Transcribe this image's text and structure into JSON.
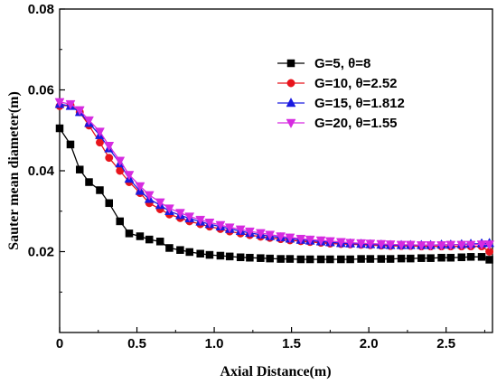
{
  "chart_data": {
    "type": "line",
    "xlabel": "Axial Distance(m)",
    "ylabel": "Sauter mean diameter(m)",
    "xlim": [
      0,
      2.8
    ],
    "ylim": [
      0,
      0.08
    ],
    "x_ticks": [
      0,
      0.5,
      1.0,
      1.5,
      2.0,
      2.5
    ],
    "x_tick_labels": [
      "0",
      "0.5",
      "1.0",
      "1.5",
      "2.0",
      "2.5"
    ],
    "y_ticks": [
      0.02,
      0.04,
      0.06,
      0.08
    ],
    "y_tick_labels": [
      "0.02",
      "0.04",
      "0.06",
      "0.08"
    ],
    "grid": false,
    "legend_position": "top-right",
    "series": [
      {
        "name": "G=5,   θ=8",
        "color": "#000000",
        "marker": "square",
        "x": [
          0.0,
          0.07,
          0.13,
          0.19,
          0.26,
          0.32,
          0.39,
          0.45,
          0.52,
          0.58,
          0.65,
          0.71,
          0.78,
          0.84,
          0.91,
          0.97,
          1.04,
          1.1,
          1.17,
          1.23,
          1.3,
          1.36,
          1.43,
          1.49,
          1.56,
          1.62,
          1.69,
          1.75,
          1.82,
          1.88,
          1.95,
          2.01,
          2.08,
          2.14,
          2.21,
          2.27,
          2.34,
          2.4,
          2.47,
          2.53,
          2.6,
          2.66,
          2.73,
          2.78
        ],
        "y": [
          0.0505,
          0.0465,
          0.0403,
          0.0372,
          0.0352,
          0.032,
          0.0275,
          0.0245,
          0.0238,
          0.023,
          0.0225,
          0.0209,
          0.0204,
          0.0199,
          0.0195,
          0.0192,
          0.019,
          0.0188,
          0.0186,
          0.0185,
          0.0184,
          0.0183,
          0.0182,
          0.0182,
          0.0181,
          0.0181,
          0.0181,
          0.0181,
          0.0181,
          0.0181,
          0.0182,
          0.0182,
          0.0182,
          0.0182,
          0.0183,
          0.0183,
          0.0184,
          0.0184,
          0.0185,
          0.0185,
          0.0186,
          0.0187,
          0.0187,
          0.018
        ]
      },
      {
        "name": "G=10, θ=2.52",
        "color": "#e8141c",
        "marker": "circle",
        "x": [
          0.0,
          0.07,
          0.13,
          0.19,
          0.26,
          0.32,
          0.39,
          0.45,
          0.52,
          0.58,
          0.65,
          0.71,
          0.78,
          0.84,
          0.91,
          0.97,
          1.04,
          1.1,
          1.17,
          1.23,
          1.3,
          1.36,
          1.43,
          1.49,
          1.56,
          1.62,
          1.69,
          1.75,
          1.82,
          1.88,
          1.95,
          2.01,
          2.08,
          2.14,
          2.21,
          2.27,
          2.34,
          2.4,
          2.47,
          2.53,
          2.6,
          2.66,
          2.73,
          2.78
        ],
        "y": [
          0.056,
          0.0562,
          0.0545,
          0.0512,
          0.047,
          0.0432,
          0.04,
          0.0372,
          0.0345,
          0.032,
          0.0305,
          0.0292,
          0.0283,
          0.0275,
          0.0268,
          0.0262,
          0.0256,
          0.025,
          0.0245,
          0.0241,
          0.0237,
          0.0234,
          0.0231,
          0.0228,
          0.0226,
          0.0224,
          0.0222,
          0.022,
          0.0219,
          0.0218,
          0.0217,
          0.0216,
          0.0215,
          0.0214,
          0.0214,
          0.0214,
          0.0213,
          0.0213,
          0.0213,
          0.0213,
          0.0213,
          0.0213,
          0.0213,
          0.02
        ]
      },
      {
        "name": "G=15, θ=1.812",
        "color": "#1a1ae0",
        "marker": "triangle-up",
        "x": [
          0.0,
          0.07,
          0.13,
          0.19,
          0.26,
          0.32,
          0.39,
          0.45,
          0.52,
          0.58,
          0.65,
          0.71,
          0.78,
          0.84,
          0.91,
          0.97,
          1.04,
          1.1,
          1.17,
          1.23,
          1.3,
          1.36,
          1.43,
          1.49,
          1.56,
          1.62,
          1.69,
          1.75,
          1.82,
          1.88,
          1.95,
          2.01,
          2.08,
          2.14,
          2.21,
          2.27,
          2.34,
          2.4,
          2.47,
          2.53,
          2.6,
          2.66,
          2.73,
          2.78
        ],
        "y": [
          0.0565,
          0.056,
          0.0545,
          0.0518,
          0.0488,
          0.0455,
          0.0418,
          0.038,
          0.035,
          0.033,
          0.0315,
          0.03,
          0.029,
          0.0282,
          0.0274,
          0.0268,
          0.0262,
          0.0256,
          0.0251,
          0.0246,
          0.0242,
          0.0238,
          0.0235,
          0.0232,
          0.0229,
          0.0227,
          0.0225,
          0.0223,
          0.0221,
          0.022,
          0.0219,
          0.0218,
          0.0217,
          0.0216,
          0.0216,
          0.0216,
          0.0216,
          0.0216,
          0.0217,
          0.0217,
          0.0218,
          0.0219,
          0.022,
          0.0221
        ]
      },
      {
        "name": "G=20, θ=1.55",
        "color": "#d62be0",
        "marker": "triangle-down",
        "x": [
          0.0,
          0.07,
          0.13,
          0.19,
          0.26,
          0.32,
          0.39,
          0.45,
          0.52,
          0.58,
          0.65,
          0.71,
          0.78,
          0.84,
          0.91,
          0.97,
          1.04,
          1.1,
          1.17,
          1.23,
          1.3,
          1.36,
          1.43,
          1.49,
          1.56,
          1.62,
          1.69,
          1.75,
          1.82,
          1.88,
          1.95,
          2.01,
          2.08,
          2.14,
          2.21,
          2.27,
          2.34,
          2.4,
          2.47,
          2.53,
          2.6,
          2.66,
          2.73,
          2.78
        ],
        "y": [
          0.057,
          0.0565,
          0.055,
          0.0525,
          0.0497,
          0.0462,
          0.0425,
          0.039,
          0.0362,
          0.034,
          0.0322,
          0.0307,
          0.0296,
          0.0287,
          0.0279,
          0.0272,
          0.0266,
          0.026,
          0.0255,
          0.025,
          0.0246,
          0.0242,
          0.0238,
          0.0235,
          0.0232,
          0.023,
          0.0228,
          0.0226,
          0.0224,
          0.0222,
          0.0221,
          0.022,
          0.0219,
          0.0218,
          0.0217,
          0.0217,
          0.0216,
          0.0216,
          0.0216,
          0.0217,
          0.0217,
          0.0217,
          0.0218,
          0.0218
        ]
      }
    ]
  }
}
